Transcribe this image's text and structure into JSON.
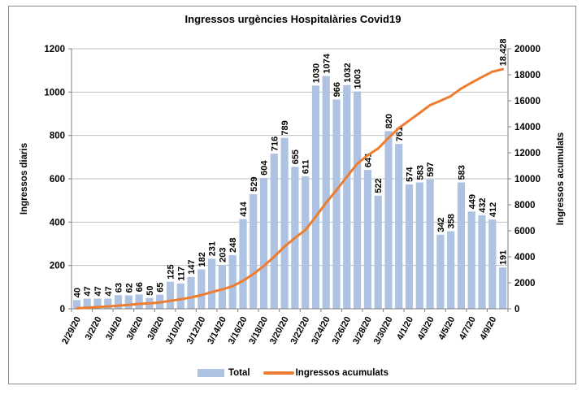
{
  "chart_data": {
    "type": "bar",
    "subtype": "combo-bar-line",
    "title": "Ingressos urgències Hospitalàries Covid19",
    "ylabel_left": "Ingressos diaris",
    "ylabel_right": "Ingressos acumulats",
    "y_left": {
      "min": 0,
      "max": 1200,
      "step": 200
    },
    "y_right": {
      "min": 0,
      "max": 20000,
      "step": 2000
    },
    "grid": true,
    "legend_position": "bottom",
    "x_tick_labels": [
      "2/29/20",
      "3/2/20",
      "3/4/20",
      "3/6/20",
      "3/8/20",
      "3/10/20",
      "3/12/20",
      "3/14/20",
      "3/16/20",
      "3/18/20",
      "3/20/20",
      "3/22/20",
      "3/24/20",
      "3/26/20",
      "3/28/20",
      "3/30/20",
      "4/1/20",
      "4/3/20",
      "4/5/20",
      "4/7/20",
      "4/9/20"
    ],
    "bars": {
      "name": "Total",
      "color": "#AEC2E1",
      "values": [
        40,
        47,
        47,
        47,
        63,
        62,
        66,
        50,
        65,
        125,
        117,
        147,
        182,
        231,
        203,
        248,
        414,
        529,
        604,
        716,
        789,
        655,
        611,
        1030,
        1074,
        966,
        1032,
        1003,
        641,
        522,
        820,
        761,
        574,
        583,
        597,
        342,
        358,
        583,
        449,
        432,
        412,
        191
      ]
    },
    "line": {
      "name": "Ingressos acumulats",
      "color": "#ED7D31",
      "values": [
        40,
        87,
        134,
        181,
        244,
        306,
        372,
        422,
        487,
        612,
        729,
        876,
        1058,
        1289,
        1492,
        1740,
        2154,
        2683,
        3287,
        4003,
        4792,
        5447,
        6058,
        7088,
        8162,
        9128,
        10160,
        11163,
        11804,
        12326,
        13146,
        13907,
        14481,
        15064,
        15661,
        16003,
        16361,
        16944,
        17393,
        17825,
        18237,
        18428
      ],
      "end_label": "18.428"
    },
    "legend": [
      "Total",
      "Ingressos acumulats"
    ],
    "colors": {
      "axis": "#808080",
      "gridline": "#BFBFBF",
      "text": "#000000",
      "frame_border": "#8a8a8a"
    }
  }
}
